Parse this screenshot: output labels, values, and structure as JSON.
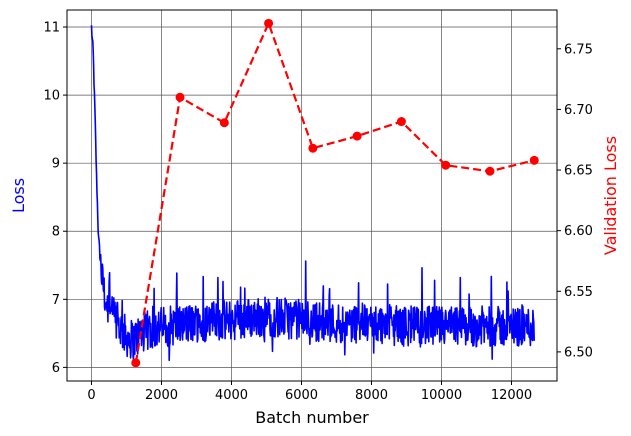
{
  "chart_data": {
    "type": "line",
    "title": "",
    "xlabel": "Batch number",
    "xlim": [
      -700,
      13300
    ],
    "xticks": [
      0,
      2000,
      4000,
      6000,
      8000,
      10000,
      12000
    ],
    "grid": true,
    "axes": {
      "left": {
        "label": "Loss",
        "label_color": "#0000ff",
        "ylim": [
          5.8,
          11.25
        ],
        "ticks": [
          6,
          7,
          8,
          9,
          10,
          11
        ]
      },
      "right": {
        "label": "Validation Loss",
        "label_color": "#ff0000",
        "ylim": [
          6.476,
          6.782
        ],
        "ticks": [
          6.5,
          6.55,
          6.6,
          6.65,
          6.7,
          6.75
        ]
      }
    },
    "series": [
      {
        "axis": "left",
        "style": "solid",
        "color": "#0000ff",
        "values_summary": "noisy training loss per batch",
        "key_points": {
          "x": [
            0,
            50,
            100,
            150,
            200,
            300,
            400,
            600,
            800,
            1000,
            1200,
            1400,
            2000,
            3000,
            4000,
            5000,
            6000,
            7000,
            8000,
            9000,
            10000,
            11000,
            12000,
            12650
          ],
          "y": [
            11.0,
            10.6,
            9.7,
            8.7,
            7.9,
            7.3,
            7.0,
            6.75,
            6.6,
            6.45,
            6.4,
            6.5,
            6.6,
            6.65,
            6.7,
            6.75,
            6.7,
            6.65,
            6.65,
            6.6,
            6.6,
            6.6,
            6.6,
            6.6
          ]
        },
        "noise_amplitude": 0.3
      },
      {
        "axis": "right",
        "style": "dashed",
        "marker": "circle",
        "color": "#ff0000",
        "x": [
          1265,
          2530,
          3795,
          5060,
          6325,
          7590,
          8855,
          10120,
          11385,
          12650
        ],
        "y": [
          6.491,
          6.71,
          6.689,
          6.771,
          6.668,
          6.678,
          6.69,
          6.654,
          6.649,
          6.658
        ]
      }
    ]
  }
}
